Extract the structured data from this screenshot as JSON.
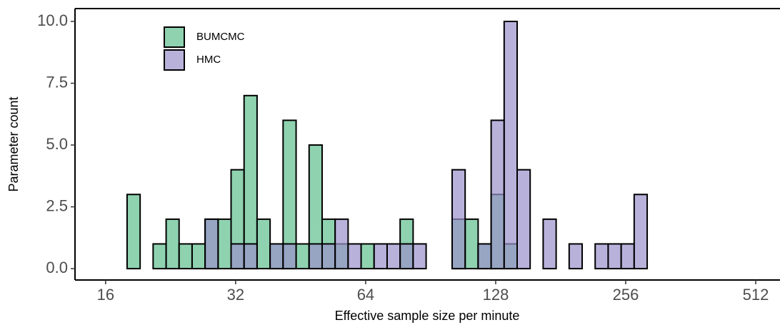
{
  "chart_data": {
    "type": "histogram",
    "x_label": "Effective sample size per minute",
    "y_label": "Parameter count",
    "xscale": "log",
    "log_base": 2,
    "bins": [
      17.94,
      19.23,
      20.61,
      22.09,
      23.67,
      25.37,
      27.19,
      29.14,
      31.23,
      33.47,
      35.87,
      38.45,
      41.21,
      44.17,
      47.34,
      50.74,
      54.38,
      58.28,
      62.46,
      66.94,
      71.75,
      76.9,
      82.42,
      88.34,
      94.68,
      101.47,
      108.76,
      116.56,
      124.93,
      133.9,
      143.51,
      153.8,
      164.85,
      176.68,
      189.36,
      202.95,
      217.52,
      233.13,
      249.86,
      267.79,
      287.04
    ],
    "series": [
      {
        "name": "BUMCMC",
        "color": "#5fbf8f",
        "values": [
          3,
          0,
          1,
          2,
          1,
          1,
          2,
          2,
          4,
          7,
          2,
          1,
          6,
          1,
          5,
          2,
          1,
          0,
          1,
          0,
          0,
          2,
          0,
          0,
          0,
          2,
          2,
          1,
          3,
          1,
          0,
          0,
          0,
          0,
          0,
          0,
          0,
          0,
          0,
          0
        ]
      },
      {
        "name": "HMC",
        "color": "#9a92cc",
        "values": [
          0,
          0,
          0,
          0,
          0,
          0,
          2,
          0,
          1,
          1,
          0,
          1,
          1,
          0,
          1,
          1,
          2,
          1,
          0,
          1,
          1,
          1,
          1,
          0,
          0,
          4,
          0,
          1,
          6,
          10,
          4,
          0,
          2,
          0,
          1,
          0,
          1,
          1,
          1,
          3
        ]
      }
    ],
    "xlim": [
      13.59,
      582.7
    ],
    "xticks": [
      16,
      32,
      64,
      128,
      256,
      512
    ],
    "ylim": [
      -0.46,
      10.52
    ],
    "yticks": [
      {
        "value": 0,
        "label": "0.0"
      },
      {
        "value": 2.5,
        "label": "2.5"
      },
      {
        "value": 5,
        "label": "5.0"
      },
      {
        "value": 7.5,
        "label": "7.5"
      },
      {
        "value": 10,
        "label": "10.0"
      }
    ],
    "legend": "top-left"
  }
}
